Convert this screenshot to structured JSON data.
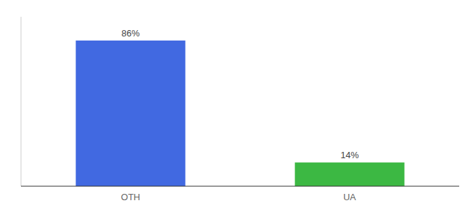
{
  "chart_data": {
    "type": "bar",
    "categories": [
      "OTH",
      "UA"
    ],
    "values": [
      86,
      14
    ],
    "value_labels": [
      "86%",
      "14%"
    ],
    "colors": [
      "#4169e1",
      "#3cb843"
    ],
    "ylim": [
      0,
      100
    ],
    "data_labels": true,
    "tick_labels": "x",
    "grid": false
  }
}
